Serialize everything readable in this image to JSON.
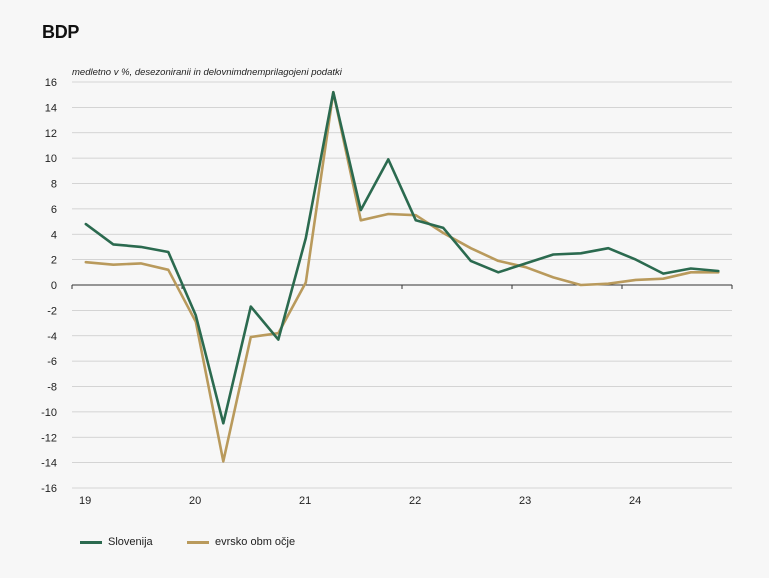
{
  "colors": {
    "slovenija": "#2b6a4f",
    "evrsko": "#b99a5c",
    "grid": "#c8c8c8",
    "axis": "#333333"
  },
  "chart_data": {
    "type": "line",
    "title": "BDP",
    "subtitle": "medletno v %, desezoniranii in delovnimdnemprilagojeni podatki",
    "ylim": [
      -16,
      16
    ],
    "yticks": [
      16,
      14,
      12,
      10,
      8,
      6,
      4,
      2,
      0,
      -2,
      -4,
      -6,
      -8,
      -10,
      -12,
      -14,
      -16
    ],
    "ytick_labels": [
      "16",
      "14",
      "12",
      "10",
      "8",
      "6",
      "4",
      "2",
      "0",
      "-2",
      "-4",
      "-6",
      "-8",
      "-10",
      "-12",
      "-14",
      "-16"
    ],
    "xtick_labels": [
      "19",
      "20",
      "21",
      "22",
      "23",
      "24"
    ],
    "grid": true,
    "legend_position": "bottom-left",
    "x": [
      "2019Q1",
      "2019Q2",
      "2019Q3",
      "2019Q4",
      "2020Q1",
      "2020Q2",
      "2020Q3",
      "2020Q4",
      "2021Q1",
      "2021Q2",
      "2021Q3",
      "2021Q4",
      "2022Q1",
      "2022Q2",
      "2022Q3",
      "2022Q4",
      "2023Q1",
      "2023Q2",
      "2023Q3",
      "2023Q4",
      "2024Q1",
      "2024Q2",
      "2024Q3",
      "2024Q4"
    ],
    "series": [
      {
        "name": "Slovenija",
        "values": [
          4.8,
          3.2,
          3.0,
          2.6,
          -2.4,
          -10.9,
          -1.7,
          -4.3,
          3.7,
          15.2,
          5.9,
          9.9,
          5.1,
          4.5,
          1.9,
          1.0,
          1.7,
          2.4,
          2.5,
          2.9,
          2.0,
          0.9,
          1.3,
          1.1
        ]
      },
      {
        "name": "evrsko območje",
        "values": [
          1.8,
          1.6,
          1.7,
          1.2,
          -2.9,
          -13.9,
          -4.1,
          -3.8,
          0.2,
          15.2,
          5.1,
          5.6,
          5.5,
          4.1,
          2.9,
          1.9,
          1.4,
          0.6,
          0.0,
          0.1,
          0.4,
          0.5,
          1.0,
          1.0
        ]
      }
    ]
  },
  "legend": {
    "slovenija": "Slovenija",
    "evrsko": "evrsko obm očje"
  }
}
